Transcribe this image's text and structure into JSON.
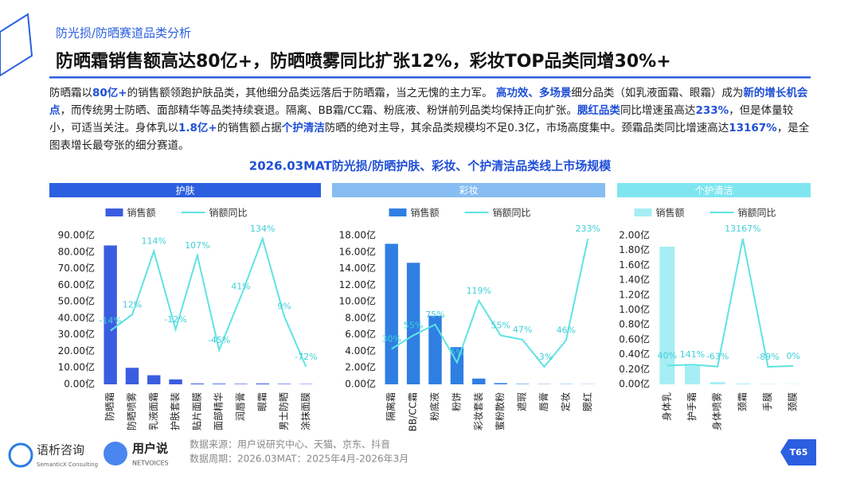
{
  "header": {
    "section": "防光损/防晒赛道品类分析",
    "title": "防晒霜销售额高达80亿+，防晒喷雾同比扩张12%，彩妆TOP品类同增30%+"
  },
  "body": [
    {
      "text": "防晒霜以",
      "highlight": false
    },
    {
      "text": "80亿+",
      "highlight": true
    },
    {
      "text": "的销售额领跑护肤品类，其他细分品类远落后于防晒霜，当之无愧的主力军。 ",
      "highlight": false
    },
    {
      "text": "高功效、多场景",
      "highlight": true
    },
    {
      "text": "细分品类（如乳液面霜、眼霜）成为",
      "highlight": false
    },
    {
      "text": "新的增长机会点",
      "highlight": true
    },
    {
      "text": "，而传统男士防晒、面部精华等品类持续衰退。隔离、BB霜/CC霜、粉底液、粉饼前列品类均保持正向扩张。",
      "highlight": false
    },
    {
      "text": "腮红品类",
      "highlight": true
    },
    {
      "text": "同比增速虽高达",
      "highlight": false
    },
    {
      "text": "233%",
      "highlight": true
    },
    {
      "text": "，但是体量较小，可适当关注。身体乳以",
      "highlight": false
    },
    {
      "text": "1.8亿+",
      "highlight": true
    },
    {
      "text": "的销售额占据",
      "highlight": false
    },
    {
      "text": "个护清洁",
      "highlight": true
    },
    {
      "text": "防晒的绝对主导，其余品类规模均不足0.3亿，市场高度集中。颈霜品类同比增速高达",
      "highlight": false
    },
    {
      "text": "13167%",
      "highlight": true
    },
    {
      "text": "，是全图表增长最夸张的细分赛道。",
      "highlight": false
    }
  ],
  "chart_title": "2026.03MAT防光损/防晒护肤、彩妆、个护清洁品类线上市场规模",
  "chart_data": [
    {
      "type": "bar-line",
      "title": "护肤",
      "header_color": "#2b5fe0",
      "categories": [
        "防晒霜",
        "防晒喷雾",
        "乳液面霜",
        "护肤套装",
        "贴片面膜",
        "面部精华",
        "润唇膏",
        "眼霜",
        "男士防晒",
        "涂抹面膜"
      ],
      "series": [
        {
          "name": "销售额",
          "color": "#3a5de0",
          "values": [
            84,
            10,
            5.5,
            3,
            0.5,
            0.4,
            0.3,
            0.5,
            0.3,
            0.2
          ]
        },
        {
          "name": "销额同比",
          "color": "#5fe3e3",
          "axis": "y2",
          "values": [
            -14,
            12,
            114,
            -12,
            107,
            -45,
            41,
            134,
            9,
            -72
          ],
          "value_labels": [
            "-14%",
            "12%",
            "114%",
            "-12%",
            "107%",
            "-45%",
            "41%",
            "134%",
            "9%",
            "-72%"
          ]
        }
      ],
      "ylim": [
        0,
        90
      ],
      "yticks": [
        {
          "value": 0,
          "label": "0.00亿"
        },
        {
          "value": 10,
          "label": "10.00亿"
        },
        {
          "value": 20,
          "label": "20.00亿"
        },
        {
          "value": 30,
          "label": "30.00亿"
        },
        {
          "value": 40,
          "label": "40.00亿"
        },
        {
          "value": 50,
          "label": "50.00亿"
        },
        {
          "value": 60,
          "label": "60.00亿"
        },
        {
          "value": 70,
          "label": "70.00亿"
        },
        {
          "value": 80,
          "label": "80.00亿"
        },
        {
          "value": 90,
          "label": "90.00亿"
        }
      ]
    },
    {
      "type": "bar-line",
      "title": "彩妆",
      "header_color": "#86bdf2",
      "categories": [
        "隔离霜",
        "BB/CC霜",
        "粉底液",
        "粉饼",
        "彩妆套装",
        "蜜粉散粉",
        "遮瑕",
        "唇膏",
        "定妆",
        "腮红"
      ],
      "series": [
        {
          "name": "销售额",
          "color": "#2f7fe3",
          "values": [
            17,
            14.7,
            8.3,
            4.5,
            0.7,
            0.15,
            0.05,
            0.03,
            0.03,
            0.02
          ]
        },
        {
          "name": "销额同比",
          "color": "#5fe3e3",
          "axis": "y2",
          "values": [
            30,
            55,
            75,
            5,
            119,
            55,
            47,
            -3,
            46,
            233
          ],
          "value_labels": [
            "30%",
            "55%",
            "75%",
            "5%",
            "119%",
            "55%",
            "47%",
            "-3%",
            "46%",
            "233%"
          ]
        }
      ],
      "ylim": [
        0,
        18
      ],
      "yticks": [
        {
          "value": 0,
          "label": "0.00亿"
        },
        {
          "value": 2,
          "label": "2.00亿"
        },
        {
          "value": 4,
          "label": "4.00亿"
        },
        {
          "value": 6,
          "label": "6.00亿"
        },
        {
          "value": 8,
          "label": "8.00亿"
        },
        {
          "value": 10,
          "label": "10.00亿"
        },
        {
          "value": 12,
          "label": "12.00亿"
        },
        {
          "value": 14,
          "label": "14.00亿"
        },
        {
          "value": 16,
          "label": "16.00亿"
        },
        {
          "value": 18,
          "label": "18.00亿"
        }
      ]
    },
    {
      "type": "bar-line",
      "title": "个护清洁",
      "header_color": "#7fe6f0",
      "categories": [
        "身体乳",
        "护手霜",
        "身体喷雾",
        "颈霜",
        "手膜",
        "颈膜"
      ],
      "series": [
        {
          "name": "销售额",
          "color": "#a6eef4",
          "values": [
            1.85,
            0.25,
            0.03,
            0.01,
            0.005,
            0.003
          ]
        },
        {
          "name": "销额同比",
          "color": "#5fe3e3",
          "axis": "y2",
          "values": [
            40,
            141,
            -63,
            13167,
            -89,
            0
          ],
          "value_labels": [
            "40%",
            "141%",
            "-63%",
            "13167%",
            "-89%",
            "0%"
          ]
        }
      ],
      "ylim": [
        0,
        2
      ],
      "yticks": [
        {
          "value": 0,
          "label": "0.00亿"
        },
        {
          "value": 0.2,
          "label": "0.20亿"
        },
        {
          "value": 0.4,
          "label": "0.40亿"
        },
        {
          "value": 0.6,
          "label": "0.60亿"
        },
        {
          "value": 0.8,
          "label": "0.80亿"
        },
        {
          "value": 1,
          "label": "1.00亿"
        },
        {
          "value": 1.2,
          "label": "1.20亿"
        },
        {
          "value": 1.4,
          "label": "1.40亿"
        },
        {
          "value": 1.6,
          "label": "1.60亿"
        },
        {
          "value": 1.8,
          "label": "1.80亿"
        },
        {
          "value": 2,
          "label": "2.00亿"
        }
      ]
    }
  ],
  "footer": {
    "source": "数据来源：用户说研究中心、天猫、京东、抖音",
    "period": "数据周期：2026.03MAT：2025年4月-2026年3月",
    "logo1": "语析咨询",
    "logo1_sub": "SemanticX Consulting",
    "logo2": "用户说",
    "logo2_sub": "NETVOICES",
    "page": "T65"
  }
}
